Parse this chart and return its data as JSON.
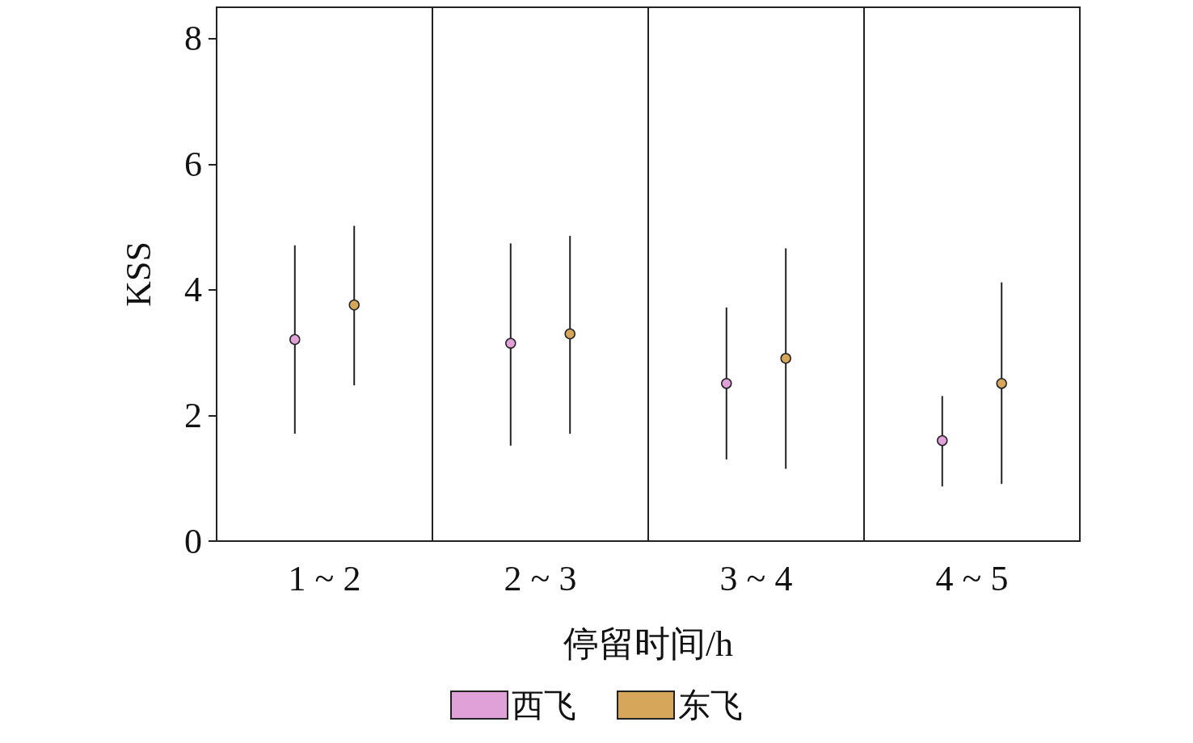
{
  "chart_data": {
    "type": "scatter",
    "xlabel": "停留时间/h",
    "ylabel": "KSS",
    "categories": [
      "1 ~ 2",
      "2 ~ 3",
      "3 ~ 4",
      "4 ~ 5"
    ],
    "series": [
      {
        "name": "西飞",
        "color": "#e0a0d8",
        "values": [
          3.21,
          3.15,
          2.51,
          1.6
        ],
        "errors": [
          [
            1.71,
            4.71
          ],
          [
            1.52,
            4.74
          ],
          [
            1.3,
            3.72
          ],
          [
            0.87,
            2.31
          ]
        ]
      },
      {
        "name": "东飞",
        "color": "#d6a65a",
        "values": [
          3.76,
          3.3,
          2.91,
          2.51
        ],
        "errors": [
          [
            2.48,
            5.02
          ],
          [
            1.71,
            4.86
          ],
          [
            1.15,
            4.66
          ],
          [
            0.91,
            4.12
          ]
        ]
      }
    ],
    "ylim": [
      0,
      8.5
    ],
    "yticks": [
      0,
      2,
      4,
      6,
      8
    ],
    "grid": "x",
    "legend": "bottom",
    "marker": "circle"
  }
}
